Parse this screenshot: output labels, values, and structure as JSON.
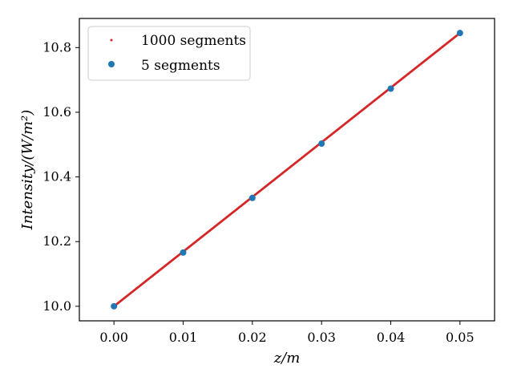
{
  "chart_data": {
    "type": "scatter",
    "xlabel": "z/m",
    "ylabel": "Intensity/(W/m²)",
    "xlim": [
      -0.005,
      0.055
    ],
    "ylim": [
      9.955,
      10.89
    ],
    "x_ticks": [
      0.0,
      0.01,
      0.02,
      0.03,
      0.04,
      0.05
    ],
    "x_tick_labels": [
      "0.00",
      "0.01",
      "0.02",
      "0.03",
      "0.04",
      "0.05"
    ],
    "y_ticks": [
      10.0,
      10.2,
      10.4,
      10.6,
      10.8
    ],
    "y_tick_labels": [
      "10.0",
      "10.2",
      "10.4",
      "10.6",
      "10.8"
    ],
    "grid": false,
    "legend_position": "top-left",
    "series": [
      {
        "name": "1000 segments",
        "marker": "small-dot",
        "color": "#d62728",
        "x_range": [
          0.0,
          0.05
        ],
        "y_range": [
          10.0,
          10.845
        ],
        "n_points": 1000
      },
      {
        "name": "5 segments",
        "marker": "circle",
        "color": "#1f77b4",
        "x": [
          0.0,
          0.01,
          0.02,
          0.03,
          0.04,
          0.05
        ],
        "y": [
          10.0,
          10.166,
          10.335,
          10.503,
          10.673,
          10.845
        ]
      }
    ]
  }
}
